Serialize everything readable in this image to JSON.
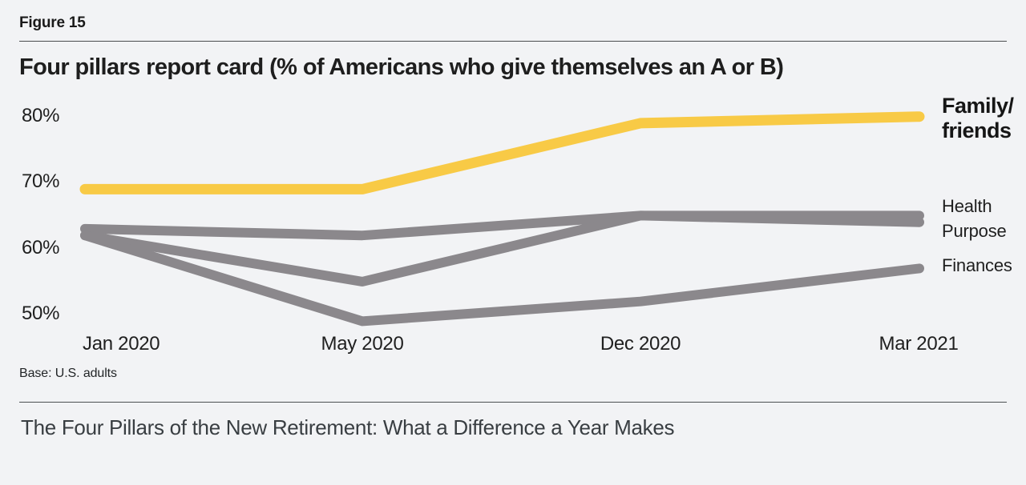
{
  "figure_label": "Figure 15",
  "title": "Four pillars report card (% of Americans who give themselves an A or B)",
  "base_note": "Base: U.S. adults",
  "footer_title": "The Four Pillars of the New Retirement: What a Difference a Year Makes",
  "colors": {
    "background": "#F2F3F5",
    "accent_yellow": "#F8CA46",
    "line_gray": "#8B888C",
    "text_dark": "#1F1F1F",
    "footer_text": "#393E42"
  },
  "chart_data": {
    "type": "line",
    "title": "Four pillars report card (% of Americans who give themselves an A or B)",
    "categories": [
      "Jan 2020",
      "May 2020",
      "Dec 2020",
      "Mar 2021"
    ],
    "yticklabels": [
      "80%",
      "70%",
      "60%",
      "50%"
    ],
    "yticks": [
      80,
      70,
      60,
      50
    ],
    "ylim": [
      46,
      84
    ],
    "grid": false,
    "legend_position": "right of line ends",
    "base_note": "Base: U.S. adults",
    "series": [
      {
        "name": "Family/friends",
        "label_lines": [
          "Family/",
          "friends"
        ],
        "values": [
          69,
          69,
          79,
          80
        ],
        "color": "#F8CA46",
        "emphasis": true
      },
      {
        "name": "Health",
        "values": [
          63,
          62,
          65,
          65
        ],
        "color": "#8B888C",
        "emphasis": false
      },
      {
        "name": "Purpose",
        "values": [
          62,
          55,
          65,
          64
        ],
        "color": "#8B888C",
        "emphasis": false
      },
      {
        "name": "Finances",
        "values": [
          62,
          49,
          52,
          57
        ],
        "color": "#8B888C",
        "emphasis": false
      }
    ]
  }
}
